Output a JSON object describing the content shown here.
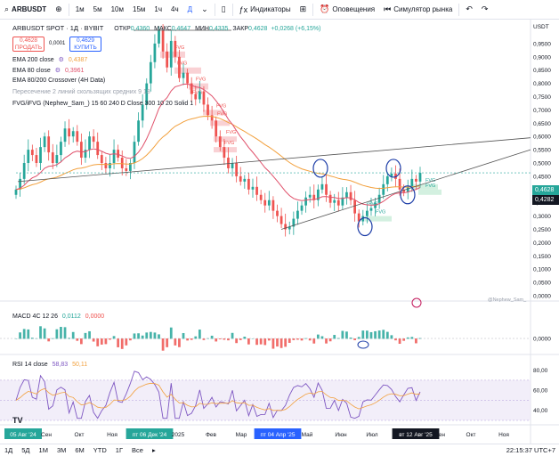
{
  "toolbar": {
    "symbol": "ARBUSDT",
    "intervals": [
      "1м",
      "5м",
      "10м",
      "15м",
      "1ч",
      "4ч",
      "Д"
    ],
    "active_interval": "Д",
    "indicators_label": "Индикаторы",
    "alerts_label": "Оповещения",
    "replay_label": "Симулятор рынка"
  },
  "legend": {
    "title": "ARBUSDT SPOT · 1Д · BYBIT",
    "open_label": "ОТКР",
    "open": "0,4360",
    "high_label": "МАКС",
    "high": "0,4647",
    "low_label": "МИН",
    "low": "0,4335",
    "close_label": "ЗАКР",
    "close": "0,4628",
    "change": "+0,0268 (+6,15%)",
    "sell_price": "0,4628",
    "sell_label": "ПРОДАТЬ",
    "spread": "0,0001",
    "buy_price": "0,4629",
    "buy_label": "КУПИТЬ",
    "ema200_label": "EMA 200 close",
    "ema200_value": "0,4387",
    "ema80_label": "EMA 80 close",
    "ema80_value": "0,3961",
    "crossover_label": "EMA 80/200 Crossover (4H Data)",
    "ma_cross_label": "Пересечение 2 линий скользящих средних 9 18",
    "fvg_label": "FVG/iFVG (Nephew_Sam_) 15 60 240 D Close 300 10 20 Solid 1",
    "watermark": "@Nephew_Sam_"
  },
  "price_scale": {
    "currency": "USDT",
    "ticks": [
      "1,0000",
      "0,9500",
      "0,9000",
      "0,8500",
      "0,8000",
      "0,7500",
      "0,7000",
      "0,6500",
      "0,6000",
      "0,5500",
      "0,5000",
      "0,4500",
      "0,4000",
      "0,3500",
      "0,3000",
      "0,2500",
      "0,2000",
      "0,1500",
      "0,1000",
      "0,0500",
      "0,0000"
    ],
    "last_price": "0,4628",
    "ema_price": "0,4282"
  },
  "fvg_labels": [
    "FVG",
    "FVG",
    "FVG",
    "FVG",
    "FVG",
    "FVG",
    "FVG",
    "FVG",
    "FVG",
    "FVG",
    "FVG",
    "FVG"
  ],
  "macd": {
    "label": "MACD 4C 12 26",
    "value1": "0,0112",
    "value2": "0,0000",
    "ticks": [
      "0,0000"
    ]
  },
  "rsi": {
    "label": "RSI 14 close",
    "value1": "58,83",
    "value2": "50,11",
    "ticks": [
      "80,00",
      "60,00",
      "40,00"
    ]
  },
  "time_axis": {
    "labels": [
      "05 Авг '24",
      "Сен",
      "Окт",
      "Ноя",
      "пт 06 Дек '24",
      "2025",
      "Фев",
      "Мар",
      "пт 04 Апр '25",
      "Май",
      "Июн",
      "Июл",
      "вт 12 Авг '25",
      "Сен",
      "Окт",
      "Ноя"
    ]
  },
  "bottom": {
    "ranges": [
      "1Д",
      "5Д",
      "1М",
      "3М",
      "6М",
      "YTD",
      "1Г",
      "Все"
    ],
    "clock": "22:15:37 UTC+7"
  },
  "colors": {
    "up": "#26a69a",
    "down": "#ef5350",
    "ema200": "#f2a03d",
    "ema80": "#e0506a",
    "accent": "#2962ff",
    "rsi": "#7e57c2",
    "fvg_bear": "#f7c6c9",
    "fvg_bull": "#c8ecd8"
  },
  "chart_data": {
    "type": "candlestick",
    "close_series": [
      0.4,
      0.44,
      0.5,
      0.55,
      0.53,
      0.5,
      0.56,
      0.6,
      0.54,
      0.5,
      0.53,
      0.58,
      0.63,
      0.6,
      0.62,
      0.58,
      0.52,
      0.55,
      0.6,
      0.58,
      0.53,
      0.5,
      0.48,
      0.5,
      0.55,
      0.52,
      0.48,
      0.47,
      0.5,
      0.58,
      0.66,
      0.72,
      0.8,
      0.88,
      0.95,
      1.0,
      0.92,
      0.86,
      0.96,
      0.9,
      0.82,
      0.84,
      0.8,
      0.76,
      0.74,
      0.77,
      0.72,
      0.68,
      0.66,
      0.6,
      0.56,
      0.52,
      0.48,
      0.5,
      0.45,
      0.43,
      0.44,
      0.4,
      0.41,
      0.38,
      0.36,
      0.34,
      0.36,
      0.32,
      0.3,
      0.27,
      0.25,
      0.26,
      0.29,
      0.32,
      0.34,
      0.37,
      0.38,
      0.36,
      0.4,
      0.42,
      0.38,
      0.35,
      0.36,
      0.34,
      0.37,
      0.39,
      0.36,
      0.31,
      0.28,
      0.3,
      0.32,
      0.33,
      0.35,
      0.38,
      0.42,
      0.45,
      0.46,
      0.44,
      0.4,
      0.39,
      0.41,
      0.44,
      0.43,
      0.4628
    ],
    "ylim": [
      0.0,
      1.0
    ]
  }
}
